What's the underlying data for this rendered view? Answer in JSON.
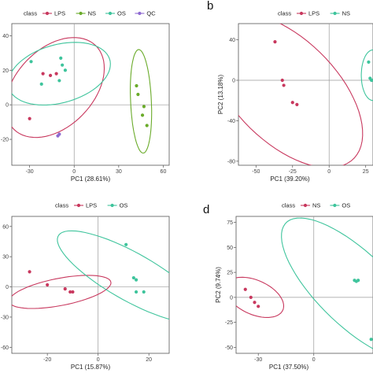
{
  "chart_data": [
    {
      "type": "scatter",
      "panel_label": "",
      "legend_title": "class",
      "legend_position": "top",
      "xlabel": "PC1 (28.61%)",
      "ylabel": "",
      "xlim": [
        -42,
        64
      ],
      "ylim": [
        -35,
        47
      ],
      "xticks": [
        -30,
        0,
        30,
        60
      ],
      "yticks": [
        -20,
        0,
        20,
        40
      ],
      "series": [
        {
          "name": "LPS",
          "color": "#c8385e",
          "x": [
            -30,
            -21,
            -16,
            -12
          ],
          "y": [
            -8,
            18,
            17,
            18
          ]
        },
        {
          "name": "NS",
          "color": "#6aab2a",
          "x": [
            42,
            43,
            46,
            47,
            49
          ],
          "y": [
            11,
            6,
            -6,
            -1,
            -12
          ]
        },
        {
          "name": "OS",
          "color": "#3ec49c",
          "x": [
            -29,
            -22,
            -10,
            -9,
            -8,
            -6
          ],
          "y": [
            25,
            12,
            14,
            27,
            23,
            20
          ]
        },
        {
          "name": "QC",
          "color": "#8e6ad1",
          "x": [
            -11,
            -10
          ],
          "y": [
            -18,
            -17
          ]
        }
      ],
      "ellipses": [
        {
          "series": "LPS",
          "cx": -13,
          "cy": 10,
          "rx": 37,
          "ry": 24,
          "angle_deg": 35
        },
        {
          "series": "NS",
          "cx": 45,
          "cy": 2,
          "rx": 7,
          "ry": 30,
          "angle_deg": 3
        },
        {
          "series": "OS",
          "cx": -10,
          "cy": 18,
          "rx": 35,
          "ry": 17,
          "angle_deg": 12
        }
      ]
    },
    {
      "type": "scatter",
      "panel_label": "b",
      "legend_title": "class",
      "legend_position": "top",
      "xlabel": "PC1 (39.20%)",
      "ylabel": "PC2 (13.18%)",
      "xlim": [
        -62,
        30
      ],
      "ylim": [
        -84,
        56
      ],
      "xticks": [
        -50,
        -25,
        0,
        25
      ],
      "yticks": [
        -80,
        -40,
        0,
        40
      ],
      "series": [
        {
          "name": "LPS",
          "color": "#c8385e",
          "x": [
            -37,
            -32,
            -31,
            -25,
            -22
          ],
          "y": [
            38,
            0,
            -5,
            -22,
            -24
          ]
        },
        {
          "name": "NS",
          "color": "#3ec49c",
          "x": [
            27,
            28,
            29,
            29
          ],
          "y": [
            18,
            2,
            0,
            0
          ]
        }
      ],
      "ellipses": [
        {
          "series": "LPS",
          "cx": -30,
          "cy": -10,
          "rx": 40,
          "ry": 84,
          "angle_deg": 28
        },
        {
          "series": "NS",
          "cx": 30,
          "cy": 5,
          "rx": 8,
          "ry": 25,
          "angle_deg": 0
        }
      ]
    },
    {
      "type": "scatter",
      "panel_label": "",
      "legend_title": "class",
      "legend_position": "top",
      "xlabel": "PC1 (15.87%)",
      "ylabel": "",
      "xlim": [
        -34,
        28
      ],
      "ylim": [
        -66,
        70
      ],
      "xticks": [
        -20,
        0,
        20
      ],
      "yticks": [
        -60,
        -30,
        0,
        30,
        60
      ],
      "series": [
        {
          "name": "LPS",
          "color": "#c8385e",
          "x": [
            -27,
            -20,
            -13,
            -11,
            -10
          ],
          "y": [
            15,
            2,
            -2,
            -5,
            -5
          ]
        },
        {
          "name": "OS",
          "color": "#3ec49c",
          "x": [
            11,
            14,
            15,
            15,
            18
          ],
          "y": [
            42,
            9,
            7,
            -5,
            -5
          ]
        }
      ],
      "ellipses": [
        {
          "series": "LPS",
          "cx": -15,
          "cy": -5,
          "rx": 23,
          "ry": 12,
          "angle_deg": 35
        },
        {
          "series": "OS",
          "cx": 13,
          "cy": 10,
          "rx": 15,
          "ry": 52,
          "angle_deg": 30
        }
      ]
    },
    {
      "type": "scatter",
      "panel_label": "d",
      "legend_title": "class",
      "legend_position": "top",
      "xlabel": "PC1 (37.50%)",
      "ylabel": "PC2 (9.74%)",
      "xlim": [
        -42,
        32
      ],
      "ylim": [
        -56,
        81
      ],
      "xticks": [
        -30,
        0
      ],
      "yticks": [
        -50,
        -25,
        0,
        25,
        50,
        75
      ],
      "series": [
        {
          "name": "NS",
          "color": "#c8385e",
          "x": [
            -37,
            -34,
            -32,
            -30
          ],
          "y": [
            8,
            0,
            -5,
            -9
          ]
        },
        {
          "name": "OS",
          "color": "#3ec49c",
          "x": [
            22,
            23,
            24,
            31
          ],
          "y": [
            17,
            16,
            17,
            -42
          ]
        }
      ],
      "ellipses": [
        {
          "series": "NS",
          "cx": -32,
          "cy": 0,
          "rx": 13,
          "ry": 22,
          "angle_deg": 30
        },
        {
          "series": "OS",
          "cx": 22,
          "cy": 8,
          "rx": 24,
          "ry": 78,
          "angle_deg": 25
        }
      ]
    }
  ]
}
